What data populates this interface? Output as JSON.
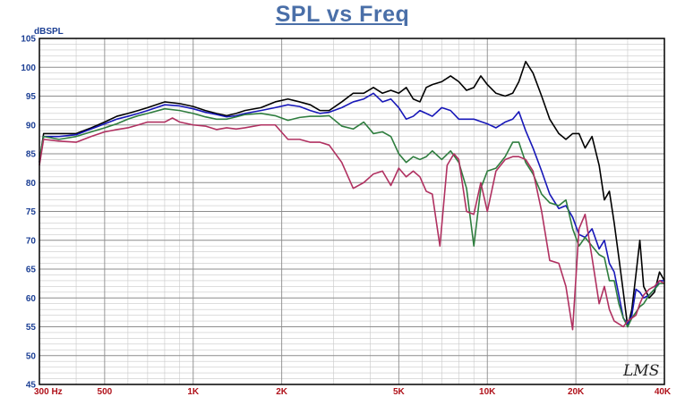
{
  "title": "SPL vs Freq",
  "watermark": "LMS",
  "chart_data": {
    "type": "line",
    "title": "SPL vs Freq",
    "ylabel": "dBSPL",
    "xlabel": "",
    "xscale": "log",
    "xlim": [
      300,
      40000
    ],
    "ylim": [
      45,
      105
    ],
    "yticks": [
      45,
      50,
      55,
      60,
      65,
      70,
      75,
      80,
      85,
      90,
      95,
      100,
      105
    ],
    "xticks": [
      {
        "value": 300,
        "label": "300 Hz"
      },
      {
        "value": 500,
        "label": "500"
      },
      {
        "value": 1000,
        "label": "1K"
      },
      {
        "value": 2000,
        "label": "2K"
      },
      {
        "value": 5000,
        "label": "5K"
      },
      {
        "value": 10000,
        "label": "10K"
      },
      {
        "value": 20000,
        "label": "20K"
      },
      {
        "value": 40000,
        "label": "40K"
      }
    ],
    "grid": true,
    "series": [
      {
        "color": "#000000",
        "points": [
          [
            300,
            83.5
          ],
          [
            310,
            88.5
          ],
          [
            350,
            88.5
          ],
          [
            400,
            88.5
          ],
          [
            450,
            89.5
          ],
          [
            500,
            90.5
          ],
          [
            550,
            91.5
          ],
          [
            600,
            92
          ],
          [
            650,
            92.5
          ],
          [
            700,
            93
          ],
          [
            800,
            94
          ],
          [
            900,
            93.7
          ],
          [
            1000,
            93.2
          ],
          [
            1100,
            92.5
          ],
          [
            1200,
            92
          ],
          [
            1300,
            91.6
          ],
          [
            1400,
            92
          ],
          [
            1500,
            92.5
          ],
          [
            1700,
            93
          ],
          [
            1900,
            94
          ],
          [
            2100,
            94.5
          ],
          [
            2300,
            94
          ],
          [
            2500,
            93.5
          ],
          [
            2700,
            92.5
          ],
          [
            2900,
            92.5
          ],
          [
            3200,
            94
          ],
          [
            3500,
            95.5
          ],
          [
            3800,
            95.5
          ],
          [
            4100,
            96.5
          ],
          [
            4400,
            95.5
          ],
          [
            4700,
            96
          ],
          [
            5000,
            95.5
          ],
          [
            5300,
            96.5
          ],
          [
            5600,
            94.5
          ],
          [
            5900,
            94
          ],
          [
            6200,
            96.5
          ],
          [
            6500,
            97
          ],
          [
            7000,
            97.5
          ],
          [
            7500,
            98.5
          ],
          [
            8000,
            97.5
          ],
          [
            8500,
            96
          ],
          [
            9000,
            96.5
          ],
          [
            9500,
            98.5
          ],
          [
            10000,
            97
          ],
          [
            10700,
            95.5
          ],
          [
            11500,
            95
          ],
          [
            12200,
            95.5
          ],
          [
            12800,
            97.5
          ],
          [
            13500,
            101
          ],
          [
            14300,
            99
          ],
          [
            15300,
            95
          ],
          [
            16300,
            91
          ],
          [
            17500,
            88.5
          ],
          [
            18500,
            87.5
          ],
          [
            19500,
            88.5
          ],
          [
            20500,
            88.5
          ],
          [
            21500,
            86
          ],
          [
            22700,
            88
          ],
          [
            24000,
            83
          ],
          [
            25000,
            77
          ],
          [
            26000,
            78.5
          ],
          [
            27000,
            73
          ],
          [
            28000,
            67
          ],
          [
            29000,
            61
          ],
          [
            30000,
            55
          ],
          [
            31000,
            58
          ],
          [
            32000,
            64
          ],
          [
            33000,
            70
          ],
          [
            34000,
            62
          ],
          [
            35500,
            60
          ],
          [
            37000,
            61
          ],
          [
            38500,
            64.5
          ],
          [
            40000,
            63
          ]
        ]
      },
      {
        "color": "#1717b8",
        "points": [
          [
            300,
            83.5
          ],
          [
            310,
            88
          ],
          [
            350,
            88
          ],
          [
            400,
            88.3
          ],
          [
            450,
            89.3
          ],
          [
            500,
            90.2
          ],
          [
            550,
            91
          ],
          [
            600,
            91.5
          ],
          [
            650,
            92
          ],
          [
            700,
            92.5
          ],
          [
            800,
            93.5
          ],
          [
            900,
            93.3
          ],
          [
            1000,
            92.8
          ],
          [
            1100,
            92.2
          ],
          [
            1200,
            91.8
          ],
          [
            1300,
            91.4
          ],
          [
            1400,
            91.6
          ],
          [
            1500,
            92
          ],
          [
            1700,
            92.5
          ],
          [
            1900,
            93
          ],
          [
            2100,
            93.5
          ],
          [
            2300,
            93.2
          ],
          [
            2500,
            92.5
          ],
          [
            2700,
            92
          ],
          [
            2900,
            92.2
          ],
          [
            3200,
            93
          ],
          [
            3500,
            94
          ],
          [
            3800,
            94.5
          ],
          [
            4100,
            95.5
          ],
          [
            4400,
            94
          ],
          [
            4700,
            94.5
          ],
          [
            5000,
            93
          ],
          [
            5300,
            91
          ],
          [
            5600,
            91.5
          ],
          [
            5900,
            92.5
          ],
          [
            6200,
            92
          ],
          [
            6500,
            91.5
          ],
          [
            7000,
            93
          ],
          [
            7500,
            92.5
          ],
          [
            8000,
            91
          ],
          [
            9000,
            91
          ],
          [
            10000,
            90.2
          ],
          [
            10700,
            89.5
          ],
          [
            11500,
            90.5
          ],
          [
            12200,
            91
          ],
          [
            12800,
            92.3
          ],
          [
            13500,
            89
          ],
          [
            14300,
            86
          ],
          [
            15300,
            82
          ],
          [
            16300,
            78
          ],
          [
            17500,
            75.5
          ],
          [
            18500,
            76
          ],
          [
            19500,
            74
          ],
          [
            20500,
            71
          ],
          [
            21500,
            70.5
          ],
          [
            22700,
            72
          ],
          [
            24000,
            68.5
          ],
          [
            25000,
            70
          ],
          [
            26000,
            66
          ],
          [
            27000,
            64.5
          ],
          [
            28000,
            60.5
          ],
          [
            29000,
            56.5
          ],
          [
            30000,
            55.5
          ],
          [
            31000,
            57
          ],
          [
            32000,
            61.5
          ],
          [
            33000,
            61
          ],
          [
            34000,
            60
          ],
          [
            35500,
            60.5
          ],
          [
            37000,
            61.5
          ],
          [
            38500,
            63
          ],
          [
            40000,
            63
          ]
        ]
      },
      {
        "color": "#2e7d3e",
        "points": [
          [
            300,
            84
          ],
          [
            310,
            88
          ],
          [
            350,
            87.5
          ],
          [
            400,
            88
          ],
          [
            450,
            88.8
          ],
          [
            500,
            89.5
          ],
          [
            550,
            90.2
          ],
          [
            600,
            91
          ],
          [
            650,
            91.6
          ],
          [
            700,
            92
          ],
          [
            800,
            92.8
          ],
          [
            900,
            92.5
          ],
          [
            1000,
            92
          ],
          [
            1100,
            91.4
          ],
          [
            1200,
            91
          ],
          [
            1300,
            91
          ],
          [
            1400,
            91.4
          ],
          [
            1500,
            91.8
          ],
          [
            1700,
            92
          ],
          [
            1900,
            91.6
          ],
          [
            2100,
            90.8
          ],
          [
            2300,
            91.3
          ],
          [
            2500,
            91.5
          ],
          [
            2700,
            91.5
          ],
          [
            2900,
            91.6
          ],
          [
            3200,
            89.8
          ],
          [
            3500,
            89.3
          ],
          [
            3800,
            90.5
          ],
          [
            4100,
            88.5
          ],
          [
            4400,
            88.8
          ],
          [
            4700,
            88
          ],
          [
            5000,
            85
          ],
          [
            5300,
            83.5
          ],
          [
            5600,
            84.5
          ],
          [
            5900,
            84
          ],
          [
            6200,
            84.5
          ],
          [
            6500,
            85.5
          ],
          [
            7000,
            84
          ],
          [
            7500,
            85.5
          ],
          [
            8000,
            83.5
          ],
          [
            8500,
            79
          ],
          [
            9000,
            69
          ],
          [
            9500,
            79
          ],
          [
            10000,
            82
          ],
          [
            10700,
            82.5
          ],
          [
            11500,
            84.5
          ],
          [
            12200,
            87
          ],
          [
            12800,
            87
          ],
          [
            13500,
            83.5
          ],
          [
            14300,
            81.5
          ],
          [
            15300,
            78
          ],
          [
            16300,
            76.5
          ],
          [
            17500,
            76
          ],
          [
            18500,
            77
          ],
          [
            19500,
            72
          ],
          [
            20500,
            69
          ],
          [
            21500,
            70.5
          ],
          [
            22700,
            69
          ],
          [
            24000,
            67.5
          ],
          [
            25000,
            67
          ],
          [
            26000,
            63
          ],
          [
            27000,
            63
          ],
          [
            28000,
            59
          ],
          [
            29000,
            56.5
          ],
          [
            30000,
            55
          ],
          [
            31000,
            56.5
          ],
          [
            32000,
            57.5
          ],
          [
            33000,
            58.5
          ],
          [
            34000,
            59
          ],
          [
            35500,
            60.5
          ],
          [
            37000,
            61.5
          ],
          [
            38500,
            62.5
          ],
          [
            40000,
            62.5
          ]
        ]
      },
      {
        "color": "#b03060",
        "points": [
          [
            300,
            83
          ],
          [
            310,
            87.5
          ],
          [
            350,
            87.2
          ],
          [
            400,
            87
          ],
          [
            450,
            88
          ],
          [
            500,
            88.8
          ],
          [
            550,
            89.2
          ],
          [
            600,
            89.5
          ],
          [
            650,
            90
          ],
          [
            700,
            90.5
          ],
          [
            800,
            90.5
          ],
          [
            850,
            91.2
          ],
          [
            900,
            90.5
          ],
          [
            1000,
            90
          ],
          [
            1100,
            89.8
          ],
          [
            1200,
            89.2
          ],
          [
            1300,
            89.5
          ],
          [
            1400,
            89.3
          ],
          [
            1500,
            89.5
          ],
          [
            1700,
            90
          ],
          [
            1900,
            90
          ],
          [
            2100,
            87.5
          ],
          [
            2300,
            87.5
          ],
          [
            2500,
            87
          ],
          [
            2700,
            87
          ],
          [
            2900,
            86.5
          ],
          [
            3200,
            83.5
          ],
          [
            3500,
            79
          ],
          [
            3800,
            80
          ],
          [
            4100,
            81.5
          ],
          [
            4400,
            82
          ],
          [
            4700,
            79.5
          ],
          [
            5000,
            82.5
          ],
          [
            5300,
            81
          ],
          [
            5600,
            82
          ],
          [
            5900,
            81
          ],
          [
            6200,
            78.5
          ],
          [
            6500,
            78
          ],
          [
            6900,
            69
          ],
          [
            7300,
            83
          ],
          [
            7700,
            85
          ],
          [
            8000,
            84
          ],
          [
            8500,
            75
          ],
          [
            9000,
            74.5
          ],
          [
            9500,
            80
          ],
          [
            10000,
            75
          ],
          [
            10700,
            82
          ],
          [
            11500,
            84
          ],
          [
            12200,
            84.5
          ],
          [
            12800,
            84.5
          ],
          [
            13500,
            84
          ],
          [
            14300,
            82
          ],
          [
            15300,
            75
          ],
          [
            16300,
            66.5
          ],
          [
            17500,
            66
          ],
          [
            18500,
            62
          ],
          [
            19500,
            54.5
          ],
          [
            20500,
            72
          ],
          [
            21500,
            74.5
          ],
          [
            22700,
            67
          ],
          [
            24000,
            59
          ],
          [
            25000,
            62
          ],
          [
            26000,
            58
          ],
          [
            27000,
            56
          ],
          [
            28000,
            55.5
          ],
          [
            29000,
            55
          ],
          [
            30000,
            56
          ],
          [
            31000,
            56.5
          ],
          [
            32000,
            57
          ],
          [
            33000,
            59
          ],
          [
            34000,
            60.5
          ],
          [
            35500,
            61.5
          ],
          [
            37000,
            62
          ],
          [
            38500,
            63
          ],
          [
            40000,
            62.5
          ]
        ]
      }
    ]
  }
}
